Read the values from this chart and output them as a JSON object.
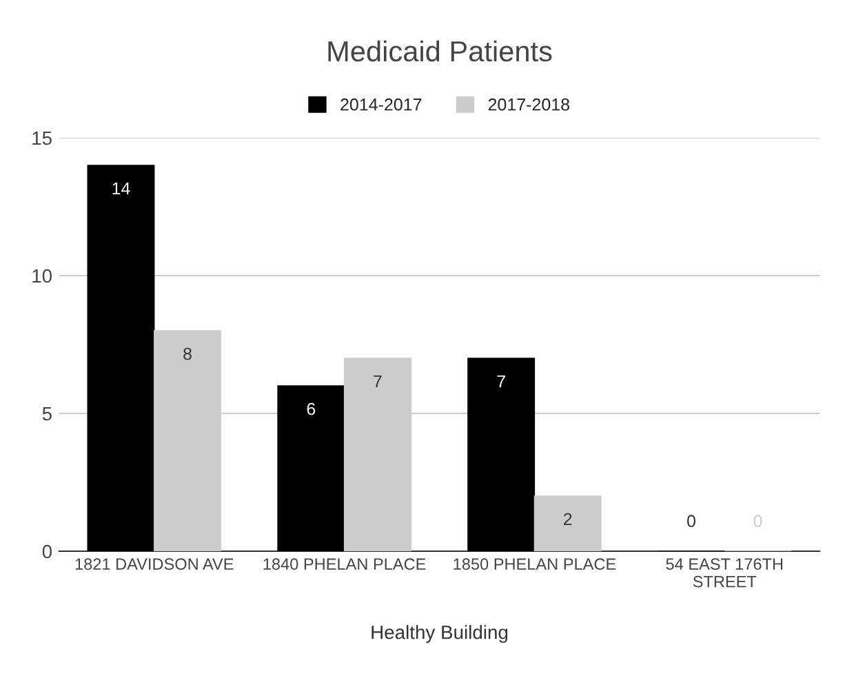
{
  "chart_data": {
    "type": "bar",
    "title": "Medicaid Patients",
    "xlabel": "Healthy Building",
    "categories": [
      "1821 DAVIDSON AVE",
      "1840 PHELAN PLACE",
      "1850 PHELAN PLACE",
      "54 EAST 176TH\nSTREET"
    ],
    "series": [
      {
        "name": "2014-2017",
        "color": "#000000",
        "values": [
          14,
          6,
          7,
          0
        ]
      },
      {
        "name": "2017-2018",
        "color": "#cccccc",
        "values": [
          8,
          7,
          2,
          0
        ]
      }
    ],
    "ylim": [
      0,
      15
    ],
    "yticks": [
      0,
      5,
      10,
      15
    ],
    "grid": "y",
    "legend": "top",
    "data_labels": true
  }
}
